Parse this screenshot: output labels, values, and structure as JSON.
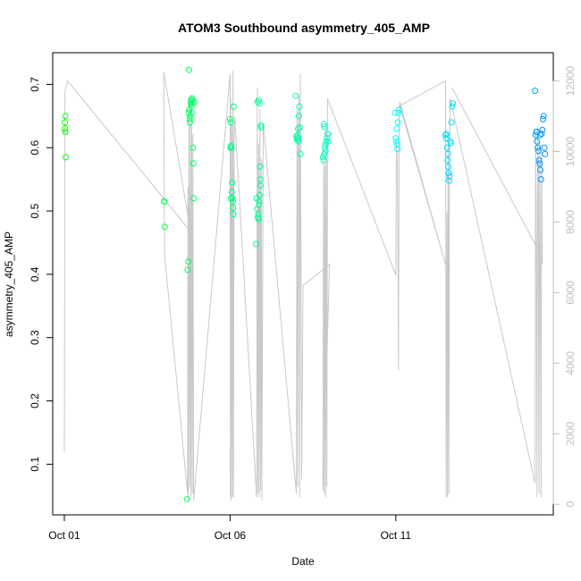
{
  "chart_data": {
    "type": "scatter",
    "title": "ATOM3 Southbound asymmetry_405_AMP",
    "xlabel": "Date",
    "ylabel": "asymmetry_405_AMP",
    "x_axis": {
      "type": "date",
      "range_days": [
        -0.35,
        14.75
      ],
      "ticks": [
        {
          "label": "Oct 01",
          "day": 0
        },
        {
          "label": "Oct 06",
          "day": 5
        },
        {
          "label": "Oct 11",
          "day": 10
        }
      ]
    },
    "y_axis": {
      "range": [
        0.02,
        0.75
      ],
      "ticks": [
        0.1,
        0.2,
        0.3,
        0.4,
        0.5,
        0.6,
        0.7
      ]
    },
    "y2_axis": {
      "range": [
        -300,
        12800
      ],
      "ticks": [
        0,
        2000,
        4000,
        6000,
        8000,
        10000,
        12000
      ],
      "color": "#bdbdbd"
    },
    "grid": false,
    "series": [
      {
        "marker": "open-circle",
        "color_note": "colour varies from green to blue with date",
        "points": [
          [
            0.02,
            0.64
          ],
          [
            0.03,
            0.65
          ],
          [
            0.02,
            0.63
          ],
          [
            0.03,
            0.625
          ],
          [
            0.04,
            0.585
          ],
          [
            3.01,
            0.515
          ],
          [
            3.02,
            0.515
          ],
          [
            3.03,
            0.475
          ],
          [
            3.7,
            0.045
          ],
          [
            3.72,
            0.407
          ],
          [
            3.74,
            0.42
          ],
          [
            3.76,
            0.723
          ],
          [
            3.75,
            0.655
          ],
          [
            3.77,
            0.66
          ],
          [
            3.78,
            0.645
          ],
          [
            3.79,
            0.64
          ],
          [
            3.8,
            0.65
          ],
          [
            3.81,
            0.67
          ],
          [
            3.82,
            0.675
          ],
          [
            3.83,
            0.665
          ],
          [
            3.84,
            0.655
          ],
          [
            3.85,
            0.678
          ],
          [
            3.86,
            0.67
          ],
          [
            3.87,
            0.675
          ],
          [
            3.88,
            0.6
          ],
          [
            3.89,
            0.575
          ],
          [
            3.9,
            0.52
          ],
          [
            3.92,
            0.672
          ],
          [
            5.0,
            0.645
          ],
          [
            5.02,
            0.64
          ],
          [
            5.01,
            0.6
          ],
          [
            5.03,
            0.603
          ],
          [
            5.04,
            0.6
          ],
          [
            5.05,
            0.53
          ],
          [
            5.02,
            0.52
          ],
          [
            5.06,
            0.545
          ],
          [
            5.07,
            0.52
          ],
          [
            5.08,
            0.515
          ],
          [
            5.09,
            0.505
          ],
          [
            5.1,
            0.495
          ],
          [
            5.11,
            0.665
          ],
          [
            5.78,
            0.448
          ],
          [
            5.8,
            0.52
          ],
          [
            5.82,
            0.503
          ],
          [
            5.84,
            0.49
          ],
          [
            5.85,
            0.495
          ],
          [
            5.86,
            0.487
          ],
          [
            5.87,
            0.51
          ],
          [
            5.88,
            0.515
          ],
          [
            5.89,
            0.525
          ],
          [
            5.9,
            0.57
          ],
          [
            5.91,
            0.55
          ],
          [
            5.92,
            0.54
          ],
          [
            5.93,
            0.635
          ],
          [
            5.94,
            0.632
          ],
          [
            5.83,
            0.672
          ],
          [
            5.86,
            0.675
          ],
          [
            5.89,
            0.67
          ],
          [
            6.98,
            0.682
          ],
          [
            7.0,
            0.618
          ],
          [
            7.02,
            0.612
          ],
          [
            7.04,
            0.62
          ],
          [
            7.05,
            0.63
          ],
          [
            7.06,
            0.615
          ],
          [
            7.07,
            0.61
          ],
          [
            7.08,
            0.65
          ],
          [
            7.09,
            0.665
          ],
          [
            7.1,
            0.632
          ],
          [
            7.12,
            0.59
          ],
          [
            7.03,
            0.615
          ],
          [
            7.8,
            0.585
          ],
          [
            7.82,
            0.58
          ],
          [
            7.84,
            0.59
          ],
          [
            7.86,
            0.6
          ],
          [
            7.88,
            0.605
          ],
          [
            7.9,
            0.61
          ],
          [
            7.92,
            0.615
          ],
          [
            7.83,
            0.637
          ],
          [
            7.85,
            0.633
          ],
          [
            7.94,
            0.622
          ],
          [
            7.95,
            0.622
          ],
          [
            7.96,
            0.61
          ],
          [
            7.88,
            0.595
          ],
          [
            9.98,
            0.655
          ],
          [
            10.0,
            0.615
          ],
          [
            10.02,
            0.61
          ],
          [
            10.04,
            0.605
          ],
          [
            10.05,
            0.598
          ],
          [
            10.06,
            0.64
          ],
          [
            10.08,
            0.655
          ],
          [
            10.1,
            0.66
          ],
          [
            10.03,
            0.63
          ],
          [
            11.5,
            0.62
          ],
          [
            11.52,
            0.615
          ],
          [
            11.54,
            0.6
          ],
          [
            11.56,
            0.58
          ],
          [
            11.58,
            0.57
          ],
          [
            11.6,
            0.56
          ],
          [
            11.62,
            0.555
          ],
          [
            11.64,
            0.61
          ],
          [
            11.66,
            0.607
          ],
          [
            11.68,
            0.64
          ],
          [
            11.7,
            0.665
          ],
          [
            11.72,
            0.67
          ],
          [
            11.53,
            0.622
          ],
          [
            11.57,
            0.59
          ],
          [
            11.61,
            0.548
          ],
          [
            14.2,
            0.69
          ],
          [
            14.22,
            0.62
          ],
          [
            14.24,
            0.625
          ],
          [
            14.26,
            0.61
          ],
          [
            14.28,
            0.6
          ],
          [
            14.3,
            0.595
          ],
          [
            14.32,
            0.58
          ],
          [
            14.34,
            0.575
          ],
          [
            14.36,
            0.565
          ],
          [
            14.38,
            0.55
          ],
          [
            14.4,
            0.622
          ],
          [
            14.42,
            0.628
          ],
          [
            14.44,
            0.645
          ],
          [
            14.46,
            0.65
          ],
          [
            14.48,
            0.6
          ],
          [
            14.5,
            0.59
          ],
          [
            14.25,
            0.625
          ],
          [
            14.35,
            0.62
          ]
        ]
      },
      {
        "axis": "y2",
        "type": "line",
        "color": "#c8c8c8",
        "points": [
          [
            0.0,
            1500
          ],
          [
            0.02,
            11700
          ],
          [
            0.1,
            12000
          ],
          [
            3.75,
            7800
          ],
          [
            3.76,
            8000
          ],
          [
            3.0,
            12250
          ],
          [
            3.02,
            7100
          ],
          [
            3.72,
            300
          ],
          [
            3.73,
            9000
          ],
          [
            3.74,
            100
          ],
          [
            3.76,
            11400
          ],
          [
            3.78,
            500
          ],
          [
            3.8,
            10800
          ],
          [
            3.82,
            200
          ],
          [
            3.84,
            11600
          ],
          [
            3.86,
            300
          ],
          [
            3.88,
            10500
          ],
          [
            3.9,
            100
          ],
          [
            5.0,
            12200
          ],
          [
            5.01,
            200
          ],
          [
            5.02,
            11500
          ],
          [
            5.03,
            100
          ],
          [
            5.05,
            10800
          ],
          [
            5.07,
            200
          ],
          [
            5.09,
            12300
          ],
          [
            5.1,
            200
          ],
          [
            5.12,
            10300
          ],
          [
            5.14,
            11000
          ],
          [
            5.8,
            200
          ],
          [
            5.82,
            11800
          ],
          [
            5.84,
            300
          ],
          [
            5.86,
            10200
          ],
          [
            5.88,
            200
          ],
          [
            5.9,
            11200
          ],
          [
            5.92,
            400
          ],
          [
            5.94,
            9800
          ],
          [
            5.96,
            100
          ],
          [
            6.0,
            10800
          ],
          [
            7.0,
            300
          ],
          [
            7.02,
            11200
          ],
          [
            7.04,
            500
          ],
          [
            7.06,
            10000
          ],
          [
            7.08,
            11600
          ],
          [
            7.1,
            200
          ],
          [
            7.12,
            12200
          ],
          [
            7.14,
            6300
          ],
          [
            7.16,
            700
          ],
          [
            7.2,
            6200
          ],
          [
            8.0,
            6800
          ],
          [
            7.8,
            400
          ],
          [
            7.82,
            10000
          ],
          [
            7.84,
            300
          ],
          [
            7.86,
            9600
          ],
          [
            7.88,
            200
          ],
          [
            7.9,
            10800
          ],
          [
            7.92,
            500
          ],
          [
            7.94,
            11500
          ],
          [
            10.0,
            6500
          ],
          [
            10.02,
            10300
          ],
          [
            10.05,
            9500
          ],
          [
            10.08,
            3800
          ],
          [
            10.1,
            10800
          ],
          [
            10.12,
            11400
          ],
          [
            11.5,
            6800
          ],
          [
            10.12,
            11300
          ],
          [
            11.5,
            12000
          ],
          [
            11.52,
            200
          ],
          [
            11.54,
            8300
          ],
          [
            11.56,
            200
          ],
          [
            11.58,
            10500
          ],
          [
            11.6,
            300
          ],
          [
            11.62,
            9400
          ],
          [
            11.64,
            11500
          ],
          [
            14.2,
            600
          ],
          [
            14.22,
            10500
          ],
          [
            14.24,
            7000
          ],
          [
            14.26,
            200
          ],
          [
            14.28,
            10700
          ],
          [
            14.3,
            8800
          ],
          [
            14.32,
            300
          ],
          [
            14.34,
            10200
          ],
          [
            14.36,
            7100
          ],
          [
            14.38,
            200
          ],
          [
            14.4,
            10000
          ],
          [
            14.42,
            6800
          ],
          [
            14.3,
            7200
          ],
          [
            11.7,
            11800
          ]
        ]
      }
    ]
  }
}
